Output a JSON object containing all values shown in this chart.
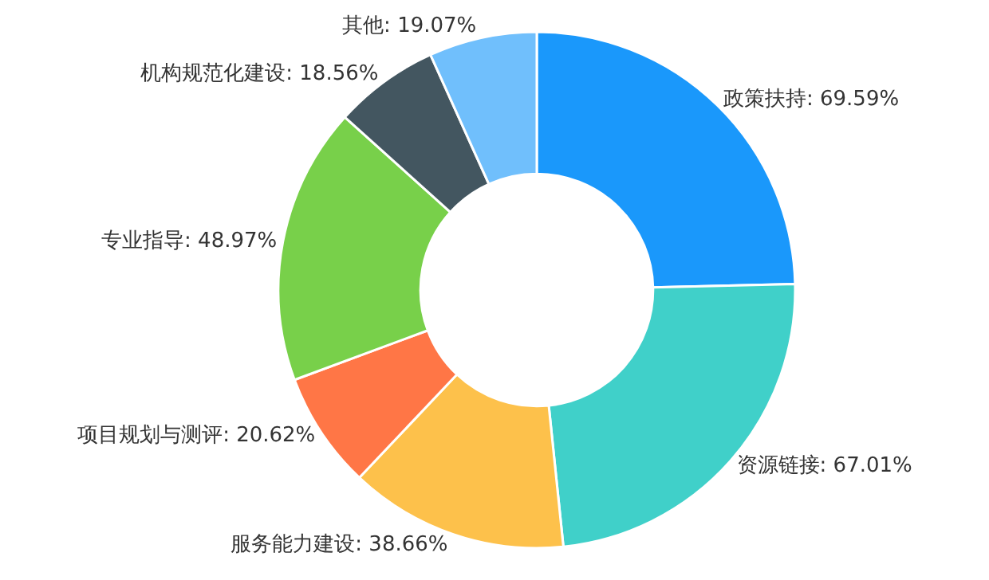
{
  "chart_data": {
    "type": "donut",
    "categories": [
      "政策扶持",
      "资源链接",
      "服务能力建设",
      "项目规划与测评",
      "专业指导",
      "机构规范化建设",
      "其他"
    ],
    "values": [
      69.59,
      67.01,
      38.66,
      20.62,
      48.97,
      18.56,
      19.07
    ],
    "value_labels": [
      "69.59%",
      "67.01%",
      "38.66%",
      "20.62%",
      "48.97%",
      "18.56%",
      "19.07%"
    ],
    "colors": [
      "#1a98fb",
      "#40d0c9",
      "#fdc14b",
      "#ff7646",
      "#78d04a",
      "#435660",
      "#70bffc"
    ],
    "legend": false
  }
}
